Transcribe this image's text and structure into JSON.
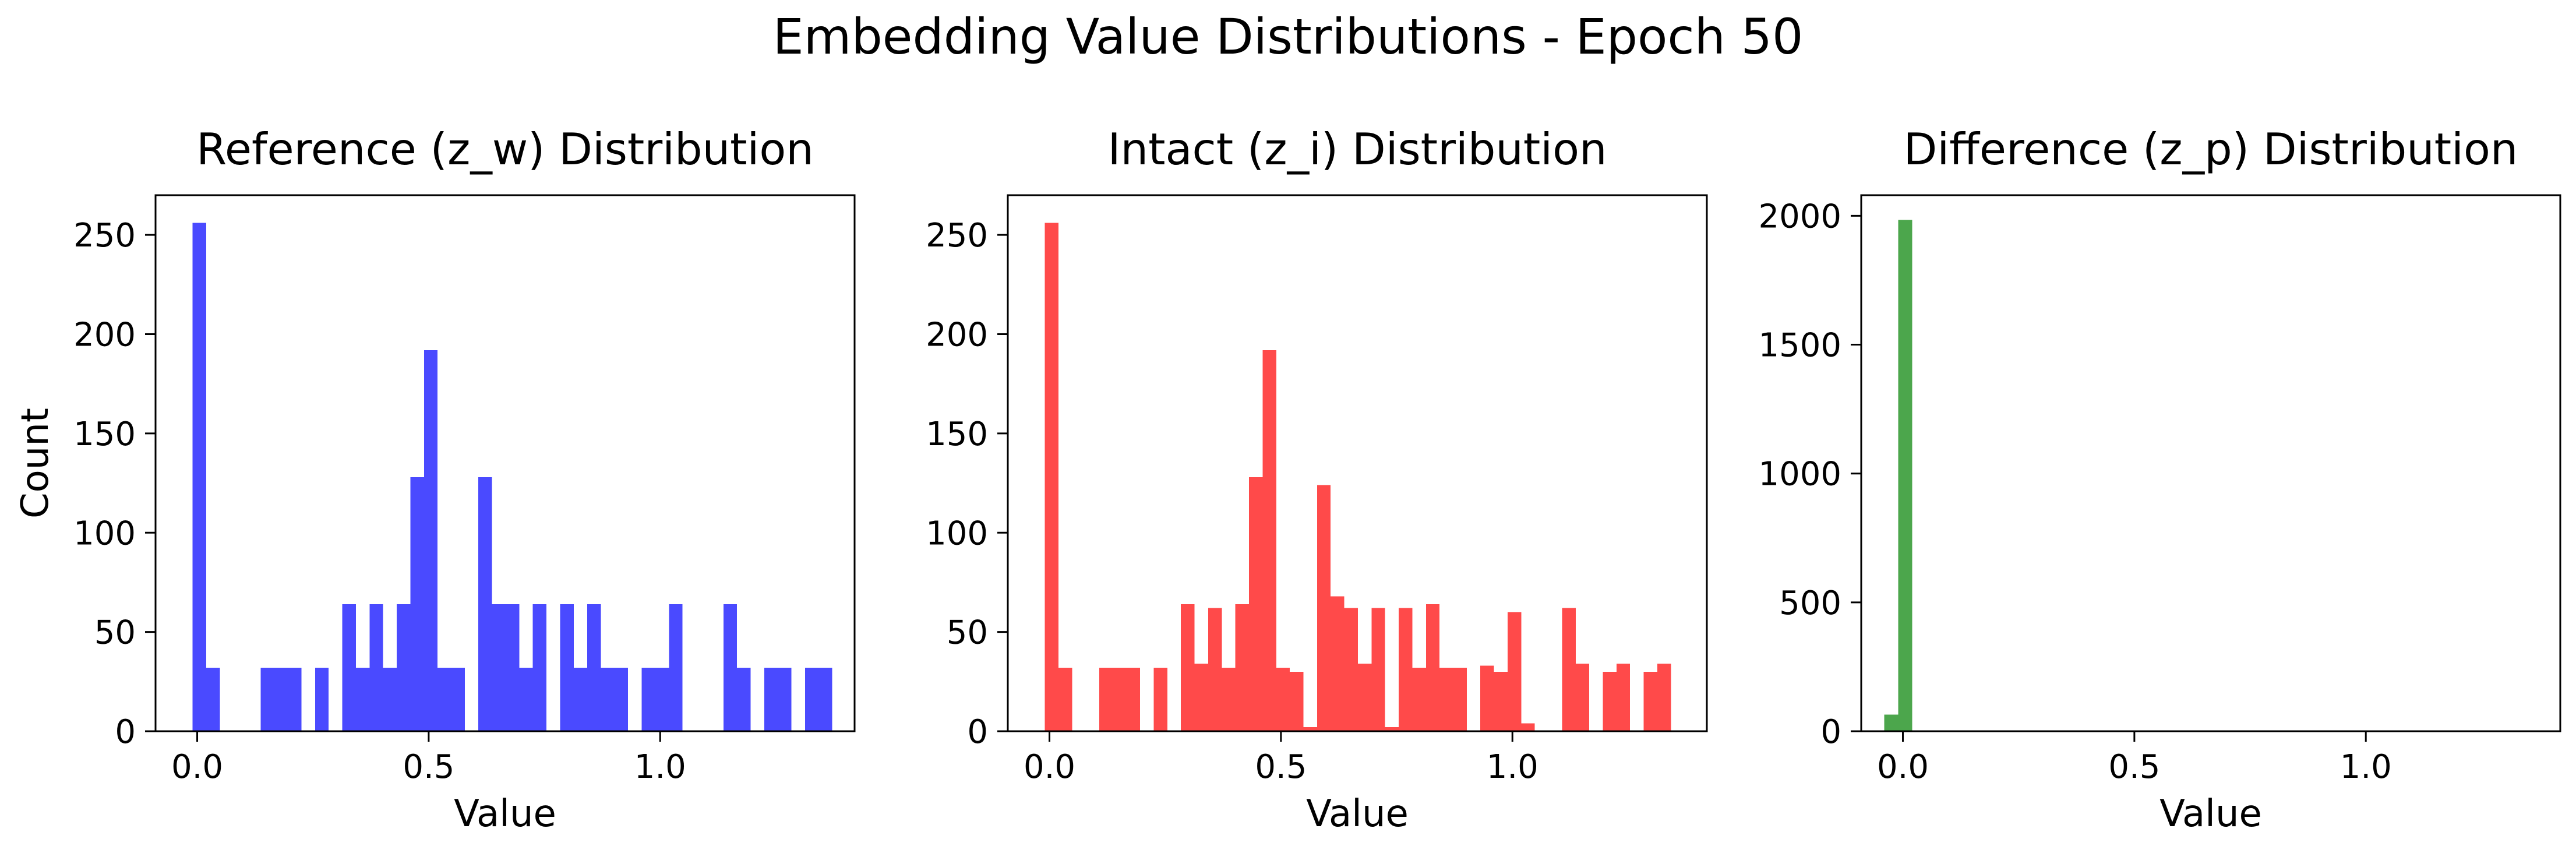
{
  "figure": {
    "title": "Embedding Value Distributions - Epoch 50"
  },
  "chart_data": [
    {
      "type": "bar",
      "title": "Reference (z_w) Distribution",
      "xlabel": "Value",
      "ylabel": "Count",
      "color": "#4a4aff",
      "xlim": [
        -0.09,
        1.42
      ],
      "ylim": [
        0,
        270
      ],
      "xticks": [
        0.0,
        0.5,
        1.0
      ],
      "xtick_labels": [
        "0.0",
        "0.5",
        "1.0"
      ],
      "yticks": [
        0,
        50,
        100,
        150,
        200,
        250
      ],
      "ytick_labels": [
        "0",
        "50",
        "100",
        "150",
        "200",
        "250"
      ],
      "bin_start": -0.01,
      "bin_width": 0.0294,
      "values": [
        256,
        32,
        0,
        0,
        0,
        32,
        32,
        32,
        0,
        32,
        0,
        64,
        32,
        64,
        32,
        64,
        128,
        192,
        32,
        32,
        0,
        128,
        64,
        64,
        32,
        64,
        0,
        64,
        32,
        64,
        32,
        32,
        0,
        32,
        32,
        64,
        0,
        0,
        0,
        64,
        32,
        0,
        32,
        32,
        0,
        32,
        32
      ]
    },
    {
      "type": "bar",
      "title": "Intact (z_i) Distribution",
      "xlabel": "Value",
      "ylabel": "",
      "color": "#ff4a4a",
      "xlim": [
        -0.09,
        1.42
      ],
      "ylim": [
        0,
        270
      ],
      "xticks": [
        0.0,
        0.5,
        1.0
      ],
      "xtick_labels": [
        "0.0",
        "0.5",
        "1.0"
      ],
      "yticks": [
        0,
        50,
        100,
        150,
        200,
        250
      ],
      "ytick_labels": [
        "0",
        "50",
        "100",
        "150",
        "200",
        "250"
      ],
      "bin_start": -0.01,
      "bin_width": 0.0294,
      "values": [
        256,
        32,
        0,
        0,
        32,
        32,
        32,
        0,
        32,
        0,
        64,
        34,
        62,
        32,
        64,
        128,
        192,
        32,
        30,
        2,
        124,
        68,
        62,
        34,
        62,
        2,
        62,
        32,
        64,
        32,
        32,
        0,
        33,
        30,
        60,
        4,
        0,
        0,
        62,
        34,
        0,
        30,
        34,
        0,
        30,
        34
      ]
    },
    {
      "type": "bar",
      "title": "Difference (z_p) Distribution",
      "xlabel": "Value",
      "ylabel": "",
      "color": "#4ca64c",
      "xlim": [
        -0.09,
        1.42
      ],
      "ylim": [
        0,
        2080
      ],
      "xticks": [
        0.0,
        0.5,
        1.0
      ],
      "xtick_labels": [
        "0.0",
        "0.5",
        "1.0"
      ],
      "yticks": [
        0,
        500,
        1000,
        1500,
        2000
      ],
      "ytick_labels": [
        "0",
        "500",
        "1000",
        "1500",
        "2000"
      ],
      "bin_start": -0.04,
      "bin_width": 0.03,
      "values": [
        64,
        1984
      ]
    }
  ]
}
